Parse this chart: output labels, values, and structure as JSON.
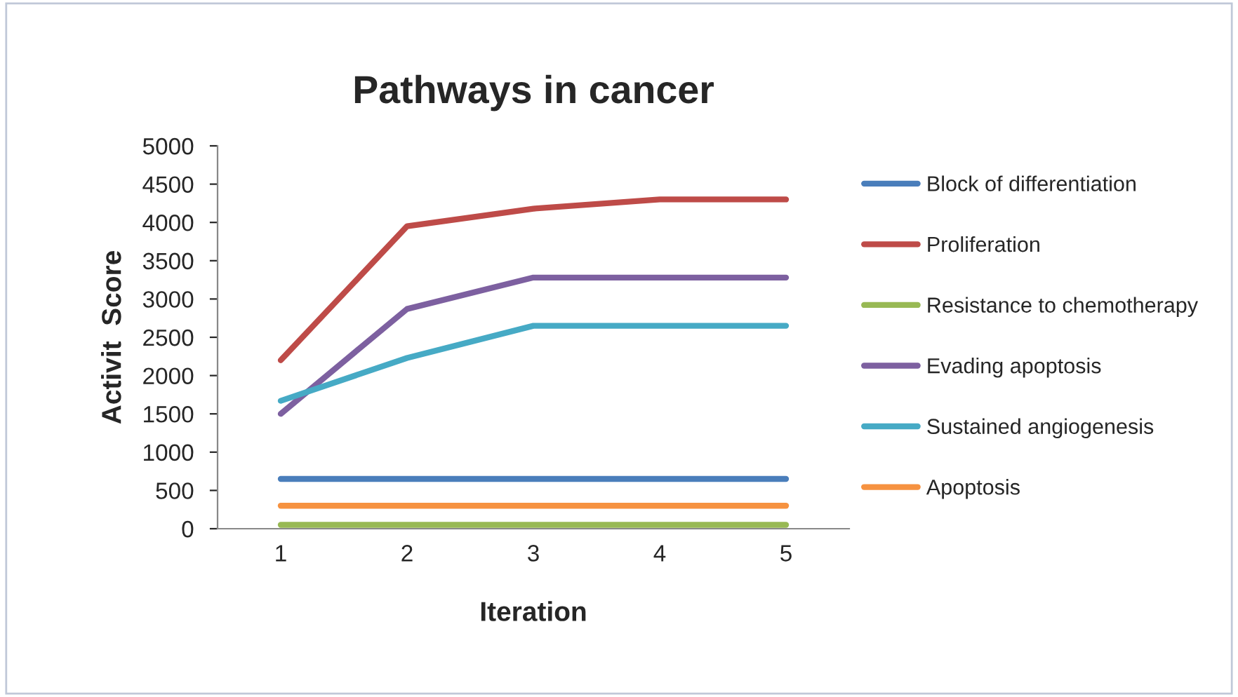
{
  "chart_data": {
    "type": "line",
    "title": "Pathways in cancer",
    "xlabel": "Iteration",
    "ylabel": "Activit  Score",
    "categories": [
      "1",
      "2",
      "3",
      "4",
      "5"
    ],
    "series": [
      {
        "name": "Block of differentiation",
        "color": "#4a7ebb",
        "values": [
          650,
          650,
          650,
          650,
          650
        ]
      },
      {
        "name": "Proliferation",
        "color": "#be4b48",
        "values": [
          2200,
          3950,
          4180,
          4300,
          4300
        ]
      },
      {
        "name": "Resistance to chemotherapy",
        "color": "#98b954",
        "values": [
          50,
          50,
          50,
          50,
          50
        ]
      },
      {
        "name": "Evading apoptosis",
        "color": "#7d60a0",
        "values": [
          1500,
          2870,
          3280,
          3280,
          3280
        ]
      },
      {
        "name": "Sustained angiogenesis",
        "color": "#46aac5",
        "values": [
          1670,
          2230,
          2650,
          2650,
          2650
        ]
      },
      {
        "name": "Apoptosis",
        "color": "#f69240",
        "values": [
          300,
          300,
          300,
          300,
          300
        ]
      }
    ],
    "ylim": [
      0,
      5000
    ],
    "yticks": [
      0,
      500,
      1000,
      1500,
      2000,
      2500,
      3000,
      3500,
      4000,
      4500,
      5000
    ],
    "grid": false,
    "legend": "right",
    "marker": "none",
    "line_style": "solid"
  }
}
